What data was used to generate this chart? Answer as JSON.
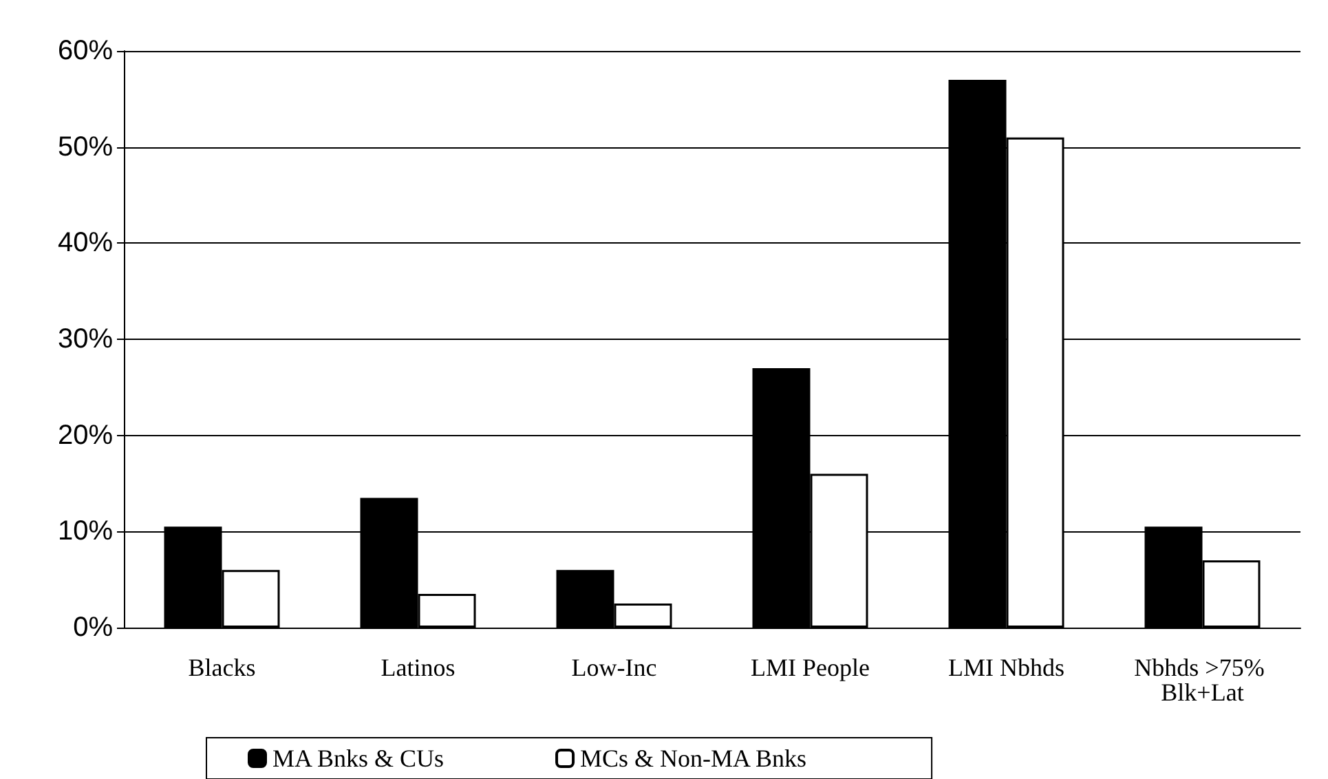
{
  "chart_data": {
    "type": "bar",
    "categories": [
      "Blacks",
      "Latinos",
      "Low-Inc",
      "LMI People",
      "LMI Nbhds",
      "Nbhds >75% Blk+Lat"
    ],
    "series": [
      {
        "name": "MA Bnks & CUs",
        "color": "#000000",
        "values": [
          10.5,
          13.5,
          6,
          27,
          57,
          10.5
        ]
      },
      {
        "name": "MCs & Non-MA Bnks",
        "color": "#ffffff",
        "values": [
          6,
          3.5,
          2.5,
          16,
          51,
          7
        ]
      }
    ],
    "ylim": [
      0,
      60
    ],
    "yticks": [
      {
        "value": 0,
        "label": "0%"
      },
      {
        "value": 10,
        "label": "10%"
      },
      {
        "value": 20,
        "label": "20%"
      },
      {
        "value": 30,
        "label": "30%"
      },
      {
        "value": 40,
        "label": "40%"
      },
      {
        "value": 50,
        "label": "50%"
      },
      {
        "value": 60,
        "label": "60%"
      }
    ],
    "grid": "y",
    "legend": "bottom"
  }
}
